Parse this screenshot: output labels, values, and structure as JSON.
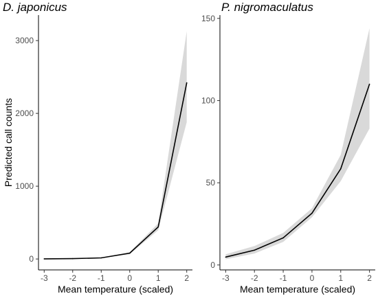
{
  "chart_data": [
    {
      "type": "line",
      "title": "D. japonicus",
      "xlabel": "Mean temperature (scaled)",
      "ylabel": "Predicted call counts",
      "x": [
        -3,
        -2,
        -1,
        0,
        1,
        2
      ],
      "xlim": [
        -3.2,
        2.2
      ],
      "ylim": [
        -150,
        3350
      ],
      "x_ticks": [
        -3,
        -2,
        -1,
        0,
        1,
        2
      ],
      "y_ticks": [
        0,
        1000,
        2000,
        3000
      ],
      "x_tick_labels": [
        "-3",
        "-2",
        "-1",
        "0",
        "1",
        "2"
      ],
      "y_tick_labels": [
        "0",
        "1000",
        "2000",
        "3000"
      ],
      "series": [
        {
          "values": [
            2,
            5,
            15,
            80,
            440,
            2420
          ],
          "lower": [
            1,
            3,
            11,
            66,
            395,
            1880
          ],
          "upper": [
            3,
            7,
            19,
            94,
            490,
            3130
          ]
        }
      ],
      "grid": false,
      "legend": "none"
    },
    {
      "type": "line",
      "title": "P. nigromaculatus",
      "xlabel": "Mean temperature (scaled)",
      "ylabel": "",
      "x": [
        -3,
        -2,
        -1,
        0,
        1,
        2
      ],
      "xlim": [
        -3.2,
        2.2
      ],
      "ylim": [
        -3,
        152
      ],
      "x_ticks": [
        -3,
        -2,
        -1,
        0,
        1,
        2
      ],
      "y_ticks": [
        0,
        50,
        100,
        150
      ],
      "x_tick_labels": [
        "-3",
        "-2",
        "-1",
        "0",
        "1",
        "2"
      ],
      "y_tick_labels": [
        "0",
        "50",
        "100",
        "150"
      ],
      "series": [
        {
          "values": [
            4.8,
            9,
            16.5,
            31.5,
            58.5,
            110
          ],
          "lower": [
            3.5,
            7,
            14,
            29,
            51,
            83
          ],
          "upper": [
            6.5,
            11.5,
            19.5,
            34.5,
            67,
            144
          ]
        }
      ],
      "grid": false,
      "legend": "none"
    }
  ],
  "colors": {
    "line": "#000000",
    "ribbon": "#d9d9d9",
    "axis": "#000000",
    "tick_text": "#4d4d4d"
  }
}
